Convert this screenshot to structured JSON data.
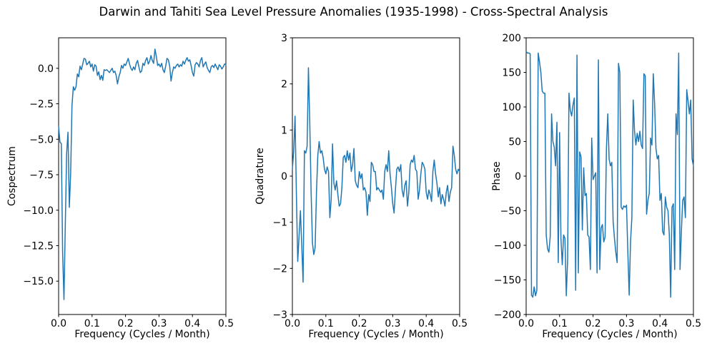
{
  "figure": {
    "title": "Darwin and Tahiti Sea Level Pressure Anomalies (1935-1998) - Cross-Spectral Analysis"
  },
  "chart_data": [
    {
      "id": "cospectrum",
      "type": "line",
      "ylabel": "Cospectrum",
      "xlabel": "Frequency (Cycles / Month)",
      "xlim": [
        0,
        0.5
      ],
      "ylim": [
        -17.35,
        2.15
      ],
      "grid": false,
      "legend": null,
      "line_color": "#1f77b4",
      "line_width": 1.5,
      "xticks": {
        "values": [
          0,
          0.1,
          0.2,
          0.3,
          0.4,
          0.5
        ],
        "labels": [
          "0.0",
          "0.1",
          "0.2",
          "0.3",
          "0.4",
          "0.5"
        ]
      },
      "yticks": {
        "values": [
          0,
          -2.5,
          -5,
          -7.5,
          -10,
          -12.5,
          -15
        ],
        "labels": [
          "0.0",
          "−2.5",
          "−5.0",
          "−7.5",
          "−10.0",
          "−12.5",
          "−15.0"
        ]
      },
      "x_start": 0,
      "x_step": 0.004,
      "values": [
        -4.1,
        -5.2,
        -5.3,
        -13.0,
        -16.3,
        -11.0,
        -6.0,
        -4.5,
        -9.8,
        -7.4,
        -2.6,
        -1.3,
        -1.55,
        -1.3,
        -0.4,
        -0.6,
        0.15,
        -0.1,
        0.3,
        0.7,
        0.65,
        0.25,
        0.35,
        0.5,
        0.1,
        0.3,
        -0.2,
        0.25,
        0.15,
        -0.5,
        -0.25,
        -0.8,
        -0.5,
        -0.85,
        -0.1,
        -0.15,
        -0.1,
        -0.2,
        -0.3,
        -0.15,
        0.0,
        -0.3,
        -0.2,
        -0.5,
        -1.1,
        -0.6,
        -0.3,
        0.2,
        0.0,
        0.3,
        0.2,
        0.45,
        0.7,
        0.3,
        0.0,
        -0.15,
        0.1,
        -0.1,
        0.35,
        0.55,
        0.1,
        -0.3,
        -0.2,
        0.35,
        0.2,
        0.55,
        0.75,
        0.3,
        0.5,
        0.9,
        0.55,
        0.35,
        1.35,
        0.85,
        0.2,
        0.3,
        0.1,
        0.35,
        -0.1,
        -0.3,
        0.15,
        0.7,
        0.6,
        0.15,
        -0.9,
        -0.3,
        0.1,
        0.0,
        0.2,
        0.3,
        0.1,
        0.25,
        0.15,
        0.5,
        0.3,
        0.55,
        0.75,
        0.5,
        0.6,
        0.2,
        -0.3,
        -0.55,
        0.25,
        0.4,
        0.3,
        0.1,
        0.55,
        0.75,
        0.1,
        0.3,
        0.45,
        0.05,
        -0.15,
        -0.3,
        0.1,
        0.2,
        0.05,
        0.3,
        0.1,
        -0.1,
        0.25,
        0.15,
        -0.05,
        0.1,
        0.3,
        0.25
      ]
    },
    {
      "id": "quadrature",
      "type": "line",
      "ylabel": "Quadrature",
      "xlabel": "Frequency (Cycles / Month)",
      "xlim": [
        0,
        0.5
      ],
      "ylim": [
        -3,
        3
      ],
      "grid": false,
      "legend": null,
      "line_color": "#1f77b4",
      "line_width": 1.5,
      "xticks": {
        "values": [
          0,
          0.1,
          0.2,
          0.3,
          0.4,
          0.5
        ],
        "labels": [
          "0.0",
          "0.1",
          "0.2",
          "0.3",
          "0.4",
          "0.5"
        ]
      },
      "yticks": {
        "values": [
          3,
          2,
          1,
          0,
          -1,
          -2,
          -3
        ],
        "labels": [
          "3",
          "2",
          "1",
          "0",
          "−1",
          "−2",
          "−3"
        ]
      },
      "x_start": 0,
      "x_step": 0.004,
      "values": [
        0.15,
        0.55,
        1.3,
        -0.4,
        -1.85,
        -1.3,
        -0.75,
        -1.5,
        -2.3,
        0.55,
        0.5,
        0.65,
        2.35,
        1.15,
        -0.35,
        -1.45,
        -1.7,
        -1.55,
        -0.35,
        0.45,
        0.75,
        0.5,
        0.55,
        0.4,
        0.15,
        0.05,
        0.2,
        0.1,
        -0.9,
        -0.5,
        0.7,
        -0.15,
        -0.3,
        -0.1,
        -0.4,
        -0.65,
        -0.6,
        -0.25,
        0.4,
        0.45,
        0.3,
        0.55,
        0.35,
        0.5,
        0.1,
        0.25,
        0.6,
        -0.1,
        -0.2,
        -0.25,
        0.1,
        -0.05,
        0.05,
        -0.3,
        -0.25,
        -0.35,
        -0.85,
        -0.4,
        -0.55,
        0.3,
        0.25,
        0.1,
        0.1,
        -0.3,
        -0.25,
        -0.3,
        -0.35,
        -0.3,
        -0.5,
        0.1,
        0.25,
        0.1,
        0.55,
        0.05,
        -0.25,
        -0.6,
        -0.8,
        -0.3,
        0.15,
        0.2,
        0.1,
        0.25,
        -0.3,
        -0.45,
        -0.2,
        -0.1,
        -0.65,
        -0.35,
        0.25,
        0.35,
        0.3,
        0.45,
        0.15,
        0.1,
        -0.5,
        -0.3,
        0.05,
        0.3,
        0.25,
        0.15,
        -0.35,
        -0.5,
        -0.3,
        -0.4,
        -0.55,
        0.1,
        0.35,
        0.05,
        -0.15,
        -0.45,
        -0.25,
        -0.6,
        -0.4,
        -0.5,
        -0.65,
        -0.35,
        -0.2,
        -0.55,
        -0.35,
        -0.25,
        0.65,
        0.45,
        0.15,
        0.05,
        0.15,
        0.1
      ]
    },
    {
      "id": "phase",
      "type": "line",
      "ylabel": "Phase",
      "xlabel": "Frequency (Cycles / Month)",
      "xlim": [
        0,
        0.5
      ],
      "ylim": [
        -200,
        200
      ],
      "grid": false,
      "legend": null,
      "line_color": "#1f77b4",
      "line_width": 1.5,
      "xticks": {
        "values": [
          0,
          0.1,
          0.2,
          0.3,
          0.4,
          0.5
        ],
        "labels": [
          "0.0",
          "0.1",
          "0.2",
          "0.3",
          "0.4",
          "0.5"
        ]
      },
      "yticks": {
        "values": [
          200,
          150,
          100,
          50,
          0,
          -50,
          -100,
          -150,
          -200
        ],
        "labels": [
          "200",
          "150",
          "100",
          "50",
          "0",
          "−50",
          "−100",
          "−150",
          "−200"
        ]
      },
      "x_start": 0,
      "x_step": 0.004,
      "values": [
        180,
        178,
        178,
        177,
        -172,
        -175,
        -160,
        -173,
        -165,
        178,
        165,
        150,
        123,
        120,
        120,
        -85,
        -105,
        -110,
        -87,
        90,
        50,
        42,
        15,
        78,
        -125,
        63,
        -90,
        -128,
        -85,
        -90,
        -173,
        -120,
        120,
        95,
        87,
        103,
        113,
        -165,
        175,
        -140,
        35,
        28,
        -78,
        12,
        -28,
        -25,
        -85,
        -88,
        -135,
        55,
        -5,
        0,
        5,
        -140,
        168,
        -135,
        -75,
        -70,
        -95,
        -88,
        40,
        90,
        25,
        15,
        20,
        -65,
        -90,
        -110,
        -125,
        163,
        150,
        -45,
        -48,
        -43,
        -45,
        -42,
        -110,
        -172,
        -95,
        -60,
        110,
        65,
        45,
        62,
        50,
        65,
        45,
        40,
        148,
        145,
        -55,
        -35,
        -25,
        55,
        45,
        148,
        105,
        40,
        25,
        30,
        -35,
        -25,
        -80,
        -85,
        -30,
        -45,
        -50,
        -85,
        -175,
        -45,
        -40,
        -135,
        90,
        60,
        178,
        -135,
        -80,
        -35,
        -30,
        -60,
        125,
        108,
        90,
        110,
        25,
        15
      ]
    }
  ]
}
